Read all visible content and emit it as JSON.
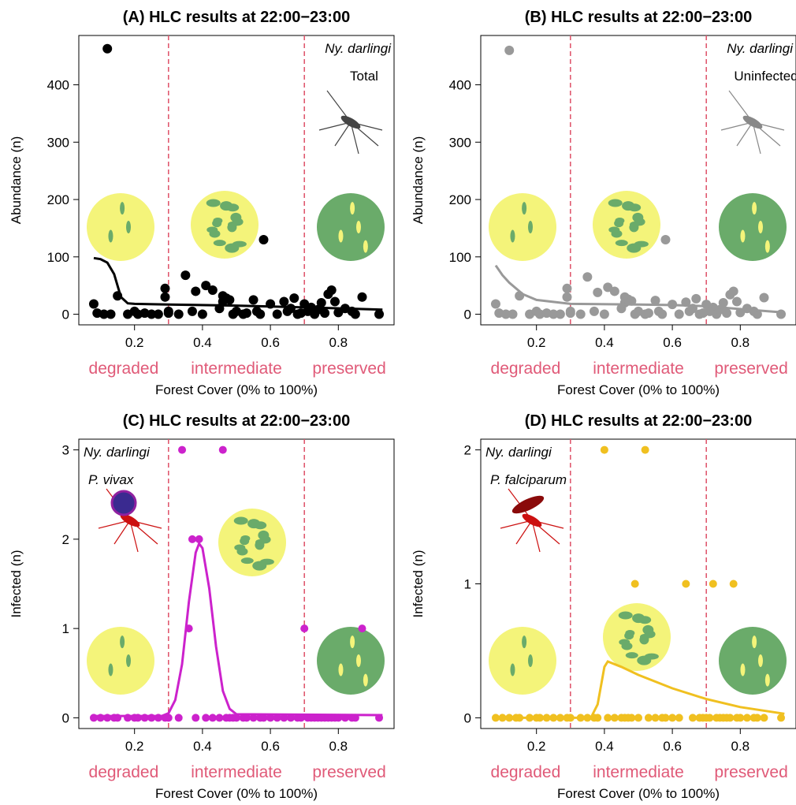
{
  "chart_data": [
    {
      "type": "scatter",
      "title": "(A) HLC results at 22:00−23:00",
      "xlabel": "Forest Cover (0% to 100%)",
      "ylabel": "Abundance (n)",
      "xlim": [
        0.036,
        0.964
      ],
      "ylim": [
        -18.5,
        486
      ],
      "xticks": [
        0.2,
        0.4,
        0.6,
        0.8
      ],
      "yticks": [
        0,
        100,
        200,
        300,
        400
      ],
      "color": "#000000",
      "thresholds": [
        0.3,
        0.7
      ],
      "zones": [
        "degraded",
        "intermediate",
        "preserved"
      ],
      "species": "Ny. darlingi",
      "annotation": "Total",
      "x": [
        0.08,
        0.09,
        0.12,
        0.11,
        0.13,
        0.15,
        0.18,
        0.2,
        0.21,
        0.23,
        0.25,
        0.27,
        0.29,
        0.29,
        0.3,
        0.3,
        0.33,
        0.35,
        0.37,
        0.38,
        0.4,
        0.41,
        0.43,
        0.45,
        0.46,
        0.46,
        0.47,
        0.48,
        0.49,
        0.5,
        0.52,
        0.53,
        0.55,
        0.56,
        0.57,
        0.58,
        0.6,
        0.62,
        0.64,
        0.65,
        0.66,
        0.67,
        0.68,
        0.69,
        0.7,
        0.71,
        0.72,
        0.73,
        0.74,
        0.75,
        0.76,
        0.77,
        0.78,
        0.79,
        0.8,
        0.82,
        0.84,
        0.85,
        0.87,
        0.92
      ],
      "values": [
        18,
        2,
        463,
        0,
        0,
        32,
        0,
        5,
        0,
        2,
        0,
        0,
        30,
        45,
        5,
        2,
        0,
        68,
        5,
        40,
        0,
        50,
        42,
        10,
        32,
        22,
        28,
        25,
        0,
        5,
        0,
        2,
        25,
        5,
        0,
        130,
        18,
        0,
        22,
        5,
        10,
        28,
        0,
        2,
        18,
        5,
        12,
        0,
        8,
        20,
        2,
        35,
        42,
        22,
        3,
        10,
        5,
        0,
        30,
        0
      ],
      "fit_x": [
        0.08,
        0.1,
        0.12,
        0.14,
        0.16,
        0.18,
        0.2,
        0.3,
        0.5,
        0.7,
        0.93
      ],
      "fit_values": [
        98,
        96,
        90,
        70,
        30,
        19,
        18,
        17,
        15,
        12,
        8
      ]
    },
    {
      "type": "scatter",
      "title": "(B) HLC results at 22:00−23:00",
      "xlabel": "Forest Cover (0% to 100%)",
      "ylabel": "Abundance (n)",
      "xlim": [
        0.036,
        0.964
      ],
      "ylim": [
        -18.5,
        486
      ],
      "xticks": [
        0.2,
        0.4,
        0.6,
        0.8
      ],
      "yticks": [
        0,
        100,
        200,
        300,
        400
      ],
      "color": "#999999",
      "thresholds": [
        0.3,
        0.7
      ],
      "zones": [
        "degraded",
        "intermediate",
        "preserved"
      ],
      "species": "Ny. darlingi",
      "annotation": "Uninfected",
      "x": [
        0.08,
        0.09,
        0.12,
        0.11,
        0.13,
        0.15,
        0.18,
        0.2,
        0.21,
        0.23,
        0.25,
        0.27,
        0.29,
        0.29,
        0.3,
        0.3,
        0.33,
        0.35,
        0.37,
        0.38,
        0.4,
        0.41,
        0.43,
        0.45,
        0.46,
        0.46,
        0.47,
        0.48,
        0.49,
        0.5,
        0.52,
        0.53,
        0.55,
        0.56,
        0.57,
        0.58,
        0.6,
        0.62,
        0.64,
        0.65,
        0.66,
        0.67,
        0.68,
        0.69,
        0.7,
        0.71,
        0.72,
        0.73,
        0.74,
        0.75,
        0.76,
        0.77,
        0.78,
        0.79,
        0.8,
        0.82,
        0.84,
        0.85,
        0.87,
        0.92
      ],
      "values": [
        18,
        2,
        460,
        0,
        0,
        32,
        0,
        5,
        0,
        2,
        0,
        0,
        30,
        45,
        5,
        2,
        0,
        65,
        5,
        38,
        0,
        47,
        40,
        10,
        30,
        20,
        26,
        23,
        0,
        5,
        0,
        2,
        24,
        5,
        0,
        130,
        17,
        0,
        21,
        5,
        10,
        27,
        0,
        2,
        17,
        5,
        12,
        0,
        8,
        20,
        2,
        34,
        40,
        22,
        3,
        10,
        5,
        0,
        29,
        0
      ],
      "fit_x": [
        0.08,
        0.1,
        0.12,
        0.16,
        0.2,
        0.3,
        0.5,
        0.6,
        0.7,
        0.8,
        0.93
      ],
      "fit_values": [
        85,
        68,
        55,
        35,
        25,
        18,
        17,
        16,
        14,
        9,
        3
      ]
    },
    {
      "type": "scatter",
      "title": "(C) HLC results at 22:00−23:00",
      "xlabel": "Forest Cover (0% to 100%)",
      "ylabel": "Infected (n)",
      "xlim": [
        0.036,
        0.964
      ],
      "ylim": [
        -0.12,
        3.12
      ],
      "xticks": [
        0.2,
        0.4,
        0.6,
        0.8
      ],
      "yticks": [
        0,
        1,
        2,
        3
      ],
      "color": "#cc22cc",
      "thresholds": [
        0.3,
        0.7
      ],
      "zones": [
        "degraded",
        "intermediate",
        "preserved"
      ],
      "species": "Ny. darlingi",
      "annotation": "P. vivax",
      "x": [
        0.34,
        0.46,
        0.37,
        0.39,
        0.36,
        0.7,
        0.87,
        0.08,
        0.1,
        0.12,
        0.14,
        0.15,
        0.18,
        0.2,
        0.21,
        0.23,
        0.25,
        0.27,
        0.29,
        0.3,
        0.33,
        0.38,
        0.41,
        0.43,
        0.45,
        0.47,
        0.48,
        0.49,
        0.5,
        0.52,
        0.53,
        0.55,
        0.57,
        0.58,
        0.6,
        0.62,
        0.64,
        0.66,
        0.68,
        0.69,
        0.71,
        0.72,
        0.73,
        0.74,
        0.75,
        0.76,
        0.77,
        0.78,
        0.79,
        0.8,
        0.82,
        0.84,
        0.85,
        0.92
      ],
      "values": [
        3,
        3,
        2,
        2,
        1,
        1,
        1,
        0,
        0,
        0,
        0,
        0,
        0,
        0,
        0,
        0,
        0,
        0,
        0,
        0,
        0,
        0,
        0,
        0,
        0,
        0,
        0,
        0,
        0,
        0,
        0,
        0,
        0,
        0,
        0,
        0,
        0,
        0,
        0,
        0,
        0,
        0,
        0,
        0,
        0,
        0,
        0,
        0,
        0,
        0,
        0,
        0,
        0,
        0
      ],
      "fit_x": [
        0.08,
        0.28,
        0.3,
        0.32,
        0.34,
        0.36,
        0.38,
        0.39,
        0.4,
        0.42,
        0.44,
        0.46,
        0.48,
        0.5,
        0.93
      ],
      "fit_values": [
        0.02,
        0.02,
        0.05,
        0.2,
        0.6,
        1.3,
        1.85,
        1.95,
        1.9,
        1.45,
        0.8,
        0.3,
        0.1,
        0.04,
        0.03
      ]
    },
    {
      "type": "scatter",
      "title": "(D) HLC results at 22:00−23:00",
      "xlabel": "Forest Cover (0% to 100%)",
      "ylabel": "Infected (n)",
      "xlim": [
        0.036,
        0.964
      ],
      "ylim": [
        -0.08,
        2.08
      ],
      "xticks": [
        0.2,
        0.4,
        0.6,
        0.8
      ],
      "yticks": [
        0,
        1,
        2
      ],
      "color": "#f0c020",
      "thresholds": [
        0.3,
        0.7
      ],
      "zones": [
        "degraded",
        "intermediate",
        "preserved"
      ],
      "species": "Ny. darlingi",
      "annotation": "P. falciparum",
      "x": [
        0.4,
        0.52,
        0.49,
        0.64,
        0.72,
        0.78,
        0.08,
        0.1,
        0.12,
        0.14,
        0.15,
        0.18,
        0.2,
        0.21,
        0.23,
        0.25,
        0.27,
        0.29,
        0.3,
        0.33,
        0.35,
        0.37,
        0.38,
        0.41,
        0.43,
        0.45,
        0.46,
        0.47,
        0.48,
        0.5,
        0.53,
        0.55,
        0.57,
        0.58,
        0.6,
        0.62,
        0.66,
        0.68,
        0.69,
        0.7,
        0.71,
        0.73,
        0.74,
        0.75,
        0.76,
        0.77,
        0.79,
        0.8,
        0.82,
        0.84,
        0.85,
        0.87,
        0.92
      ],
      "values": [
        2,
        2,
        1,
        1,
        1,
        1,
        0,
        0,
        0,
        0,
        0,
        0,
        0,
        0,
        0,
        0,
        0,
        0,
        0,
        0,
        0,
        0,
        0,
        0,
        0,
        0,
        0,
        0,
        0,
        0,
        0,
        0,
        0,
        0,
        0,
        0,
        0,
        0,
        0,
        0,
        0,
        0,
        0,
        0,
        0,
        0,
        0,
        0,
        0,
        0,
        0,
        0,
        0
      ],
      "fit_x": [
        0.08,
        0.36,
        0.38,
        0.4,
        0.41,
        0.45,
        0.5,
        0.6,
        0.7,
        0.8,
        0.93
      ],
      "fit_values": [
        0,
        0,
        0.1,
        0.38,
        0.42,
        0.38,
        0.32,
        0.22,
        0.14,
        0.08,
        0.03
      ]
    }
  ]
}
